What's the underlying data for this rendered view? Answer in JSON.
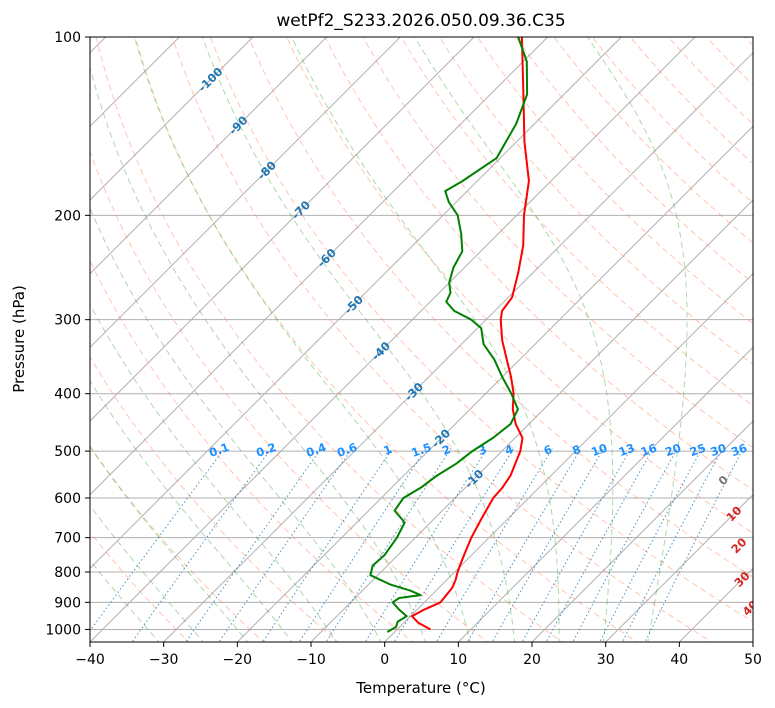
{
  "chart_data": {
    "type": "line",
    "chart_kind": "skew-T log-P diagram",
    "title": "wetPf2_S233.2026.050.09.36.C35",
    "xlabel": "Temperature (°C)",
    "ylabel": "Pressure (hPa)",
    "xlim": [
      -40,
      50
    ],
    "ylim": [
      1050,
      100
    ],
    "x_ticks": [
      -40,
      -30,
      -20,
      -10,
      0,
      10,
      20,
      30,
      40,
      50
    ],
    "y_ticks": [
      100,
      200,
      300,
      400,
      500,
      600,
      700,
      800,
      900,
      1000
    ],
    "colors": {
      "temperature": "#ff0000",
      "dewpoint": "#008000",
      "dry_adiabat": "#ff7f50",
      "moist_adiabat": "#2ca02c",
      "mixing_ratio": "#1f77b4",
      "isotherm_grid": "#888888",
      "dry_adiabat_label": "#d62728",
      "mixing_ratio_label": "#1e90ff",
      "isotherm_label": "#1f77b4",
      "zero_label": "#777777"
    },
    "series": [
      {
        "name": "Temperature",
        "points": [
          [
            1000,
            4.5
          ],
          [
            975,
            2.0
          ],
          [
            950,
            0.2
          ],
          [
            925,
            1.0
          ],
          [
            900,
            2.2
          ],
          [
            875,
            2.0
          ],
          [
            850,
            1.8
          ],
          [
            825,
            1.2
          ],
          [
            800,
            0.4
          ],
          [
            775,
            -0.3
          ],
          [
            750,
            -1.0
          ],
          [
            700,
            -2.4
          ],
          [
            650,
            -3.6
          ],
          [
            600,
            -4.8
          ],
          [
            575,
            -5.0
          ],
          [
            550,
            -5.5
          ],
          [
            500,
            -7.5
          ],
          [
            475,
            -9.0
          ],
          [
            450,
            -11.8
          ],
          [
            425,
            -14.2
          ],
          [
            400,
            -16.2
          ],
          [
            375,
            -18.8
          ],
          [
            350,
            -21.8
          ],
          [
            325,
            -25.0
          ],
          [
            300,
            -28.0
          ],
          [
            290,
            -29.0
          ],
          [
            275,
            -29.5
          ],
          [
            250,
            -32.0
          ],
          [
            225,
            -35.0
          ],
          [
            200,
            -39.0
          ],
          [
            175,
            -43.0
          ],
          [
            150,
            -49.0
          ],
          [
            125,
            -55.5
          ],
          [
            100,
            -63.5
          ]
        ]
      },
      {
        "name": "Dewpoint",
        "points": [
          [
            1010,
            -1.0
          ],
          [
            990,
            -0.5
          ],
          [
            970,
            -1.0
          ],
          [
            950,
            -0.5
          ],
          [
            925,
            -2.5
          ],
          [
            900,
            -4.3
          ],
          [
            885,
            -4.0
          ],
          [
            875,
            -1.5
          ],
          [
            860,
            -3.5
          ],
          [
            840,
            -7.0
          ],
          [
            810,
            -11.0
          ],
          [
            780,
            -12.0
          ],
          [
            750,
            -11.8
          ],
          [
            700,
            -12.5
          ],
          [
            660,
            -13.5
          ],
          [
            630,
            -16.5
          ],
          [
            600,
            -17.0
          ],
          [
            575,
            -16.0
          ],
          [
            550,
            -15.5
          ],
          [
            525,
            -14.5
          ],
          [
            500,
            -14.0
          ],
          [
            475,
            -13.0
          ],
          [
            450,
            -12.5
          ],
          [
            425,
            -13.5
          ],
          [
            400,
            -16.5
          ],
          [
            375,
            -20.0
          ],
          [
            350,
            -23.5
          ],
          [
            330,
            -27.0
          ],
          [
            310,
            -29.5
          ],
          [
            300,
            -32.0
          ],
          [
            290,
            -35.5
          ],
          [
            280,
            -37.8
          ],
          [
            270,
            -38.5
          ],
          [
            260,
            -40.0
          ],
          [
            245,
            -41.5
          ],
          [
            230,
            -42.5
          ],
          [
            215,
            -45.0
          ],
          [
            200,
            -48.0
          ],
          [
            190,
            -51.0
          ],
          [
            182,
            -53.0
          ],
          [
            175,
            -52.0
          ],
          [
            160,
            -50.5
          ],
          [
            140,
            -52.5
          ],
          [
            125,
            -55.0
          ],
          [
            110,
            -59.5
          ],
          [
            100,
            -64.0
          ]
        ]
      }
    ],
    "isotherm_labels": [
      "-100",
      "-90",
      "-80",
      "-70",
      "-60",
      "-50",
      "-40",
      "-30",
      "-20",
      "-10"
    ],
    "dry_adiabat_labels": [
      "0",
      "10",
      "20",
      "30",
      "40"
    ],
    "mixing_ratio_labels": [
      "0.1",
      "0.2",
      "0.4",
      "0.6",
      "1",
      "1.5",
      "2",
      "3",
      "4",
      "6",
      "8",
      "10",
      "13",
      "16",
      "20",
      "25",
      "30",
      "36"
    ],
    "mixing_ratio_values": [
      0.1,
      0.2,
      0.4,
      0.6,
      1,
      1.5,
      2,
      3,
      4,
      6,
      8,
      10,
      13,
      16,
      20,
      25,
      30,
      36
    ],
    "grid": true
  }
}
